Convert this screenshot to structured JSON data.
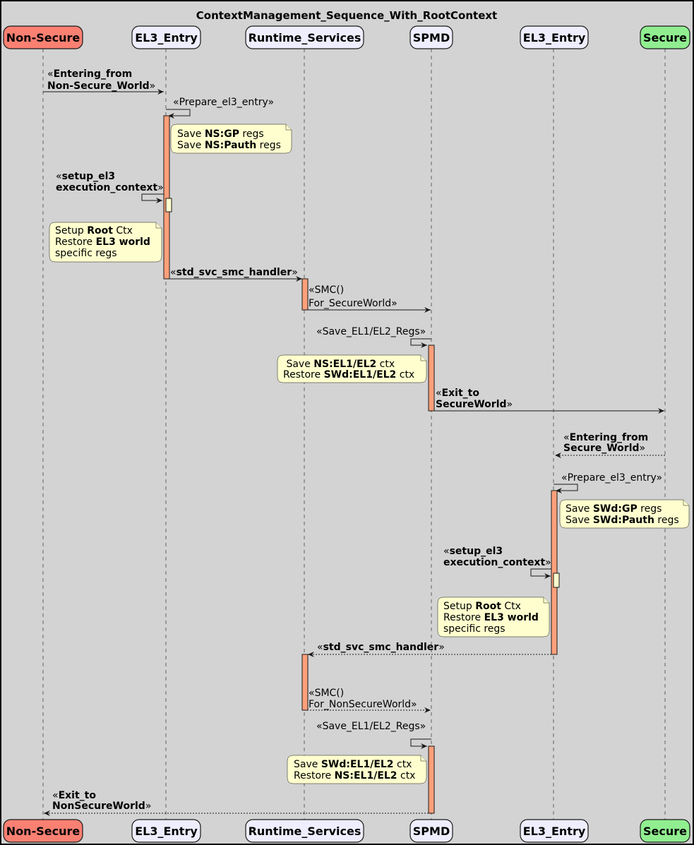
{
  "title": "ContextManagement_Sequence_With_RootContext",
  "colors": {
    "background": "#d3d3d3",
    "non_secure": "#fa8072",
    "secure": "#90ee90",
    "participant": "#eeeeff",
    "activation": "#ffa07a",
    "note": "#fefece"
  },
  "participants": [
    {
      "label": "Non-Secure",
      "color": "#fa8072"
    },
    {
      "label": "EL3_Entry",
      "color": "#eeeeff"
    },
    {
      "label": "Runtime_Services",
      "color": "#eeeeff"
    },
    {
      "label": "SPMD",
      "color": "#eeeeff"
    },
    {
      "label": "EL3_Entry",
      "color": "#eeeeff"
    },
    {
      "label": "Secure",
      "color": "#90ee90"
    }
  ],
  "messages": [
    {
      "from": "Non-Secure",
      "to": "EL3_Entry",
      "style": "solid",
      "lines": [
        [
          [
            "«",
            0
          ],
          [
            "Entering_from",
            1
          ]
        ],
        [
          [
            "Non-Secure_World",
            1
          ],
          [
            "»",
            0
          ]
        ]
      ]
    },
    {
      "from": "EL3_Entry",
      "to": "EL3_Entry",
      "style": "solid",
      "lines": [
        [
          [
            "«Prepare_el3_entry»",
            0
          ]
        ]
      ]
    },
    {
      "from": "EL3_Entry",
      "to": "EL3_Entry",
      "style": "solid",
      "lines": [
        [
          [
            "«",
            0
          ],
          [
            "setup_el3",
            1
          ]
        ],
        [
          [
            "execution_context",
            1
          ],
          [
            "»",
            0
          ]
        ]
      ]
    },
    {
      "from": "EL3_Entry",
      "to": "Runtime_Services",
      "style": "solid",
      "lines": [
        [
          [
            "«",
            0
          ],
          [
            "std_svc_smc_handler",
            1
          ],
          [
            "»",
            0
          ]
        ]
      ]
    },
    {
      "from": "Runtime_Services",
      "to": "SPMD",
      "style": "solid",
      "lines": [
        [
          [
            "«SMC()",
            0
          ]
        ],
        [
          [
            "For_SecureWorld»",
            0
          ]
        ]
      ]
    },
    {
      "from": "SPMD",
      "to": "SPMD",
      "style": "solid",
      "lines": [
        [
          [
            "«Save_EL1/EL2_Regs»",
            0
          ]
        ]
      ]
    },
    {
      "from": "SPMD",
      "to": "Secure",
      "style": "solid",
      "lines": [
        [
          [
            "«",
            0
          ],
          [
            "Exit_to",
            1
          ]
        ],
        [
          [
            "SecureWorld",
            1
          ],
          [
            "»",
            0
          ]
        ]
      ]
    },
    {
      "from": "Secure",
      "to": "EL3_Entry",
      "style": "dashed",
      "lines": [
        [
          [
            "«",
            0
          ],
          [
            "Entering_from",
            1
          ]
        ],
        [
          [
            "Secure_World",
            1
          ],
          [
            "»",
            0
          ]
        ]
      ]
    },
    {
      "from": "EL3_Entry",
      "to": "EL3_Entry",
      "style": "solid",
      "lines": [
        [
          [
            "«Prepare_el3_entry»",
            0
          ]
        ]
      ]
    },
    {
      "from": "EL3_Entry",
      "to": "EL3_Entry",
      "style": "solid",
      "lines": [
        [
          [
            "«",
            0
          ],
          [
            "setup_el3",
            1
          ]
        ],
        [
          [
            "execution_context",
            1
          ],
          [
            "»",
            0
          ]
        ]
      ]
    },
    {
      "from": "EL3_Entry",
      "to": "Runtime_Services",
      "style": "dashed",
      "lines": [
        [
          [
            "«",
            0
          ],
          [
            "std_svc_smc_handler",
            1
          ],
          [
            "»",
            0
          ]
        ]
      ]
    },
    {
      "from": "Runtime_Services",
      "to": "SPMD",
      "style": "dashed",
      "lines": [
        [
          [
            "«SMC()",
            0
          ]
        ],
        [
          [
            "For_NonSecureWorld»",
            0
          ]
        ]
      ]
    },
    {
      "from": "SPMD",
      "to": "SPMD",
      "style": "solid",
      "lines": [
        [
          [
            "«Save_EL1/EL2_Regs»",
            0
          ]
        ]
      ]
    },
    {
      "from": "SPMD",
      "to": "Non-Secure",
      "style": "dashed",
      "lines": [
        [
          [
            "«",
            0
          ],
          [
            "Exit_to",
            1
          ]
        ],
        [
          [
            "NonSecureWorld",
            1
          ],
          [
            "»",
            0
          ]
        ]
      ]
    }
  ],
  "notes": [
    {
      "lines": [
        [
          [
            "Save ",
            0
          ],
          [
            "NS:GP",
            1
          ],
          [
            " regs",
            0
          ]
        ],
        [
          [
            "Save ",
            0
          ],
          [
            "NS:Pauth",
            1
          ],
          [
            " regs",
            0
          ]
        ]
      ]
    },
    {
      "lines": [
        [
          [
            "Setup ",
            0
          ],
          [
            "Root",
            1
          ],
          [
            " Ctx",
            0
          ]
        ],
        [
          [
            "Restore ",
            0
          ],
          [
            "EL3 world",
            1
          ]
        ],
        [
          [
            "specific regs",
            0
          ]
        ]
      ]
    },
    {
      "lines": [
        [
          [
            " Save ",
            0
          ],
          [
            "NS:EL1/EL2",
            1
          ],
          [
            " ctx",
            0
          ]
        ],
        [
          [
            "Restore ",
            0
          ],
          [
            "SWd:EL1/EL2",
            1
          ],
          [
            " ctx",
            0
          ]
        ]
      ]
    },
    {
      "lines": [
        [
          [
            "Save ",
            0
          ],
          [
            "SWd:GP",
            1
          ],
          [
            " regs",
            0
          ]
        ],
        [
          [
            "Save ",
            0
          ],
          [
            "SWd:Pauth",
            1
          ],
          [
            " regs",
            0
          ]
        ]
      ]
    },
    {
      "lines": [
        [
          [
            "Setup ",
            0
          ],
          [
            "Root",
            1
          ],
          [
            " Ctx",
            0
          ]
        ],
        [
          [
            "Restore ",
            0
          ],
          [
            "EL3 world",
            1
          ]
        ],
        [
          [
            "specific regs",
            0
          ]
        ]
      ]
    },
    {
      "lines": [
        [
          [
            "Save ",
            0
          ],
          [
            "SWd:EL1/EL2",
            1
          ],
          [
            " ctx",
            0
          ]
        ],
        [
          [
            "Restore ",
            0
          ],
          [
            "NS:EL1/EL2",
            1
          ],
          [
            " ctx",
            0
          ]
        ]
      ]
    }
  ]
}
